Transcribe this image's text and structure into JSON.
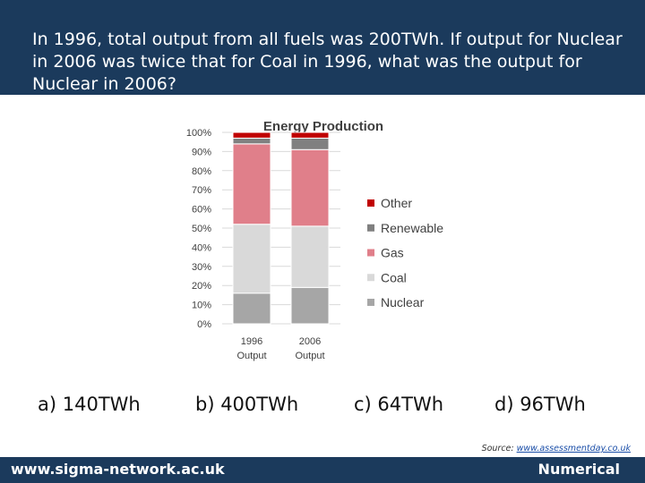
{
  "question": {
    "text": "In 1996, total output from all fuels was 200TWh. If output for Nuclear in 2006 was twice that for Coal in 1996, what was the output for Nuclear in 2006?"
  },
  "chart_data": {
    "type": "bar",
    "stacked": true,
    "title": "Energy Production",
    "categories": [
      "1996 Output",
      "2006 Output"
    ],
    "category_lines": [
      [
        "1996",
        "Output"
      ],
      [
        "2006",
        "Output"
      ]
    ],
    "y_ticks": [
      "0%",
      "10%",
      "20%",
      "30%",
      "40%",
      "50%",
      "60%",
      "70%",
      "80%",
      "90%",
      "100%"
    ],
    "ylim": [
      0,
      100
    ],
    "grid": true,
    "legend_position": "right",
    "series": [
      {
        "name": "Nuclear",
        "color": "#a6a6a6",
        "values": [
          16,
          19
        ]
      },
      {
        "name": "Coal",
        "color": "#d9d9d9",
        "values": [
          36,
          32
        ]
      },
      {
        "name": "Gas",
        "color": "#e07f8a",
        "values": [
          42,
          40
        ]
      },
      {
        "name": "Renewable",
        "color": "#808080",
        "values": [
          3,
          6
        ]
      },
      {
        "name": "Other",
        "color": "#c00000",
        "values": [
          3,
          3
        ]
      }
    ],
    "legend_order": [
      "Other",
      "Renewable",
      "Gas",
      "Coal",
      "Nuclear"
    ]
  },
  "answers": [
    {
      "label": "a) 140TWh"
    },
    {
      "label": "b) 400TWh"
    },
    {
      "label": "c) 64TWh"
    },
    {
      "label": "d) 96TWh"
    }
  ],
  "source": {
    "prefix": "Source: ",
    "link_text": "www.assessmentday.co.uk"
  },
  "footer": {
    "site": "www.sigma-network.ac.uk",
    "category": "Numerical"
  }
}
